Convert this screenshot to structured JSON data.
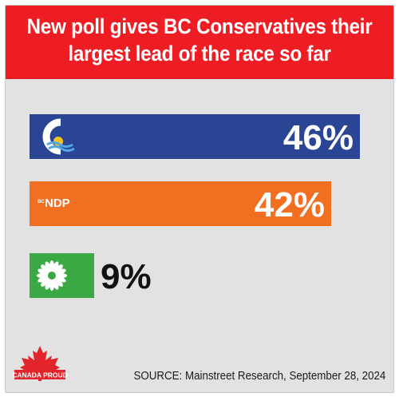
{
  "header": {
    "headline": "New poll gives BC Conservatives their largest lead of the race so far",
    "color": "#ee1d24"
  },
  "chart_data": {
    "type": "bar",
    "orientation": "horizontal",
    "xlim": [
      0,
      50
    ],
    "series": [
      {
        "label": "46%",
        "value": 46,
        "color": "#2a4594",
        "logo": "bc-conservatives-logo"
      },
      {
        "label": "42%",
        "value": 42,
        "color": "#f26f21",
        "logo": "bc-ndp-logo",
        "logo_text": "NDP",
        "logo_small_text": "BC"
      },
      {
        "label": "9%",
        "value": 9,
        "color": "#3aa843",
        "logo": "bc-greens-logo"
      }
    ]
  },
  "footer": {
    "source": "SOURCE: Mainstreet Research, September 28, 2024",
    "brand": "CANADA PROUD",
    "brand_color": "#e3242b"
  }
}
